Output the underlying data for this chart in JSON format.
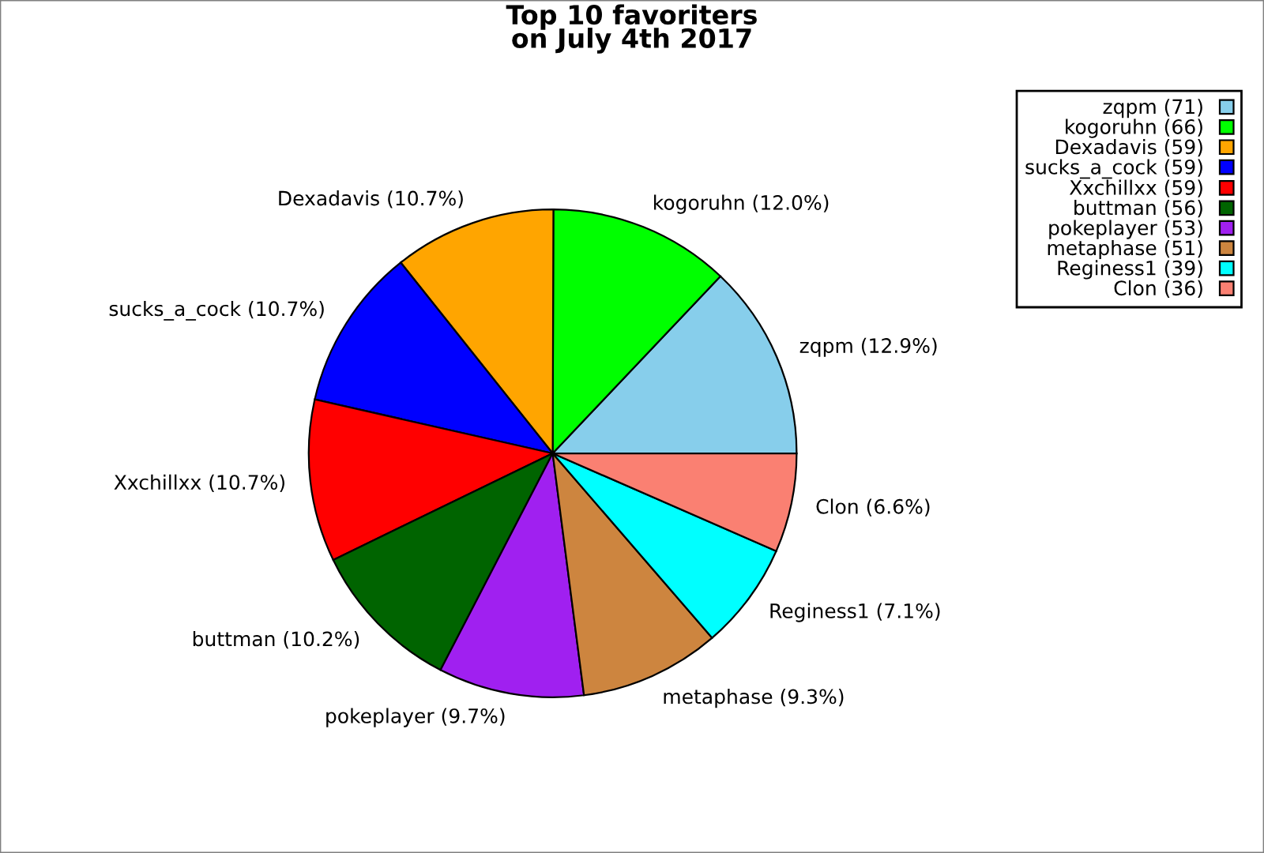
{
  "chart_data": {
    "type": "pie",
    "title": "Top 10 favoriters\non July 4th 2017",
    "categories": [
      "zqpm (71)",
      "kogoruhn (66)",
      "Dexadavis (59)",
      "sucks_a_cock (59)",
      "Xxchillxx (59)",
      "buttman (56)",
      "pokeplayer (53)",
      "metaphase (51)",
      "Reginess1 (39)",
      "Clon (36)"
    ],
    "values": [
      71,
      66,
      59,
      59,
      59,
      56,
      53,
      51,
      39,
      36
    ],
    "annotations": [
      "zqpm (12.9%)",
      "kogoruhn (12.0%)",
      "Dexadavis (10.7%)",
      "sucks_a_cock (10.7%)",
      "Xxchillxx (10.7%)",
      "buttman (10.2%)",
      "pokeplayer (9.7%)",
      "metaphase (9.3%)",
      "Reginess1 (7.1%)",
      "Clon (6.6%)"
    ],
    "colors": [
      "#87ceeb",
      "#00ff00",
      "#ffa500",
      "#0000ff",
      "#ff0000",
      "#006400",
      "#a020f0",
      "#cd853f",
      "#00ffff",
      "#fa8072"
    ],
    "legend": "top right"
  }
}
